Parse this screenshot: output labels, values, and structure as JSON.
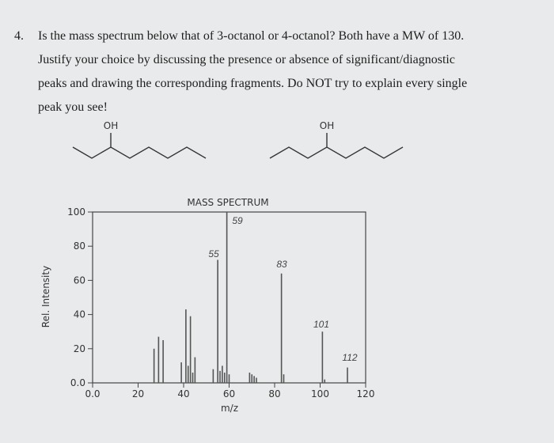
{
  "question": {
    "number": "4.",
    "lines": [
      "Is the mass spectrum below that of 3-octanol or 4-octanol? Both have a MW of 130.",
      "Justify your choice by discussing the presence or absence of significant/diagnostic",
      "peaks and drawing the corresponding fragments. Do NOT try to explain every single",
      "peak you see!"
    ]
  },
  "molecules": [
    {
      "label": "OH"
    },
    {
      "label": "OH"
    }
  ],
  "chart_data": {
    "type": "bar",
    "title": "MASS SPECTRUM",
    "x_label": "m/z",
    "y_label": "Rel. Intensity",
    "x": [
      27,
      29,
      31,
      39,
      41,
      42,
      43,
      44,
      45,
      53,
      55,
      56,
      57,
      58,
      59,
      60,
      69,
      70,
      71,
      72,
      83,
      84,
      101,
      102,
      112
    ],
    "values": [
      20,
      27,
      25,
      12,
      43,
      10,
      39,
      6,
      15,
      8,
      72,
      7,
      10,
      6,
      100,
      5,
      6,
      5,
      4,
      3,
      64,
      5,
      30,
      2,
      9
    ],
    "color": "#555555",
    "xlim": [
      0,
      120
    ],
    "ylim": [
      0,
      100
    ],
    "xticks": [
      {
        "value": 0,
        "label": "0.0"
      },
      20,
      40,
      60,
      80,
      100,
      120
    ],
    "yticks": [
      {
        "value": 0,
        "label": "0.0"
      },
      20,
      40,
      60,
      80,
      100
    ],
    "annotations": [
      "59",
      "55",
      "83",
      "101",
      "112"
    ]
  }
}
